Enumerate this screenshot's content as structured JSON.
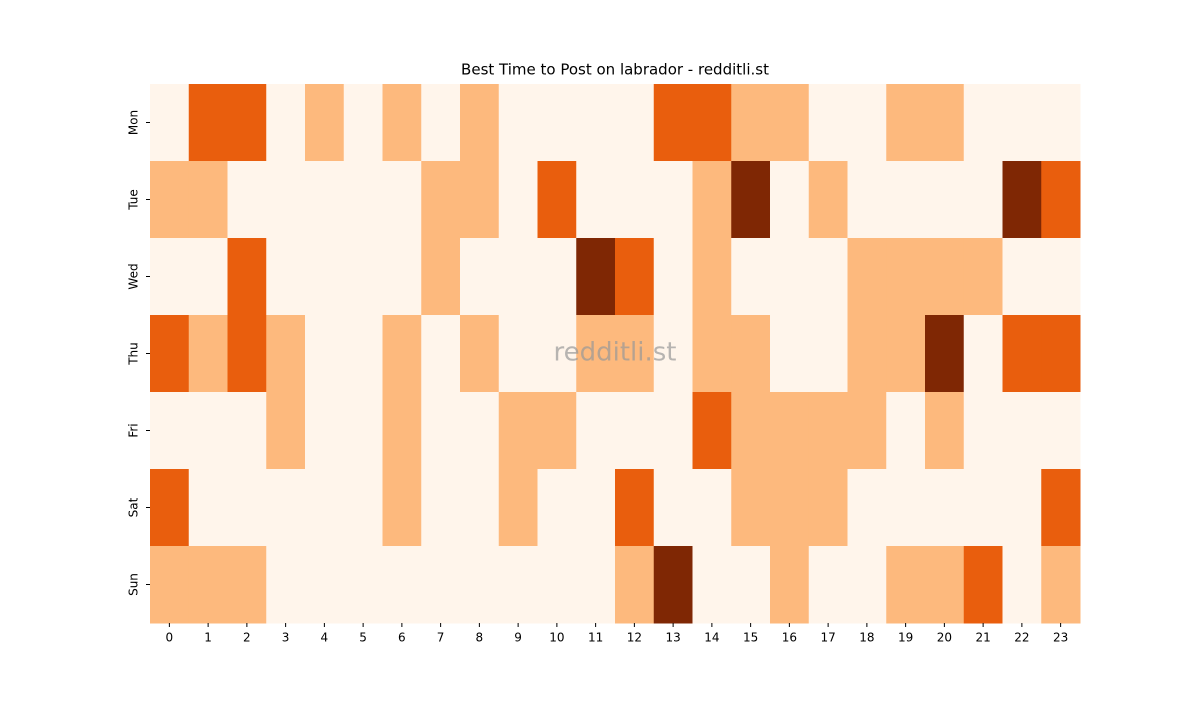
{
  "chart_data": {
    "type": "heatmap",
    "title": "Best Time to Post on labrador - redditli.st",
    "watermark": "redditli.st",
    "x": [
      0,
      1,
      2,
      3,
      4,
      5,
      6,
      7,
      8,
      9,
      10,
      11,
      12,
      13,
      14,
      15,
      16,
      17,
      18,
      19,
      20,
      21,
      22,
      23
    ],
    "y": [
      "Mon",
      "Tue",
      "Wed",
      "Thu",
      "Fri",
      "Sat",
      "Sun"
    ],
    "values": [
      [
        0,
        2,
        2,
        0,
        1,
        0,
        1,
        0,
        1,
        0,
        0,
        0,
        0,
        2,
        2,
        1,
        1,
        0,
        0,
        1,
        1,
        0,
        0,
        0
      ],
      [
        1,
        1,
        0,
        0,
        0,
        0,
        0,
        1,
        1,
        0,
        2,
        0,
        0,
        0,
        1,
        3,
        0,
        1,
        0,
        0,
        0,
        0,
        3,
        2
      ],
      [
        0,
        0,
        2,
        0,
        0,
        0,
        0,
        1,
        0,
        0,
        0,
        3,
        2,
        0,
        1,
        0,
        0,
        0,
        1,
        1,
        1,
        1,
        0,
        0
      ],
      [
        2,
        1,
        2,
        1,
        0,
        0,
        1,
        0,
        1,
        0,
        0,
        1,
        1,
        0,
        1,
        1,
        0,
        0,
        1,
        1,
        3,
        0,
        2,
        2
      ],
      [
        0,
        0,
        0,
        1,
        0,
        0,
        1,
        0,
        0,
        1,
        1,
        0,
        0,
        0,
        2,
        1,
        1,
        1,
        1,
        0,
        1,
        0,
        0,
        0
      ],
      [
        2,
        0,
        0,
        0,
        0,
        0,
        1,
        0,
        0,
        1,
        0,
        0,
        2,
        0,
        0,
        1,
        1,
        1,
        0,
        0,
        0,
        0,
        0,
        2
      ],
      [
        1,
        1,
        1,
        0,
        0,
        0,
        0,
        0,
        0,
        0,
        0,
        0,
        1,
        3,
        0,
        0,
        1,
        0,
        0,
        1,
        1,
        2,
        0,
        1
      ]
    ],
    "vlim": [
      0,
      3
    ],
    "colors": [
      "#fff5eb",
      "#fdb97d",
      "#e95e0d",
      "#7f2704"
    ]
  }
}
